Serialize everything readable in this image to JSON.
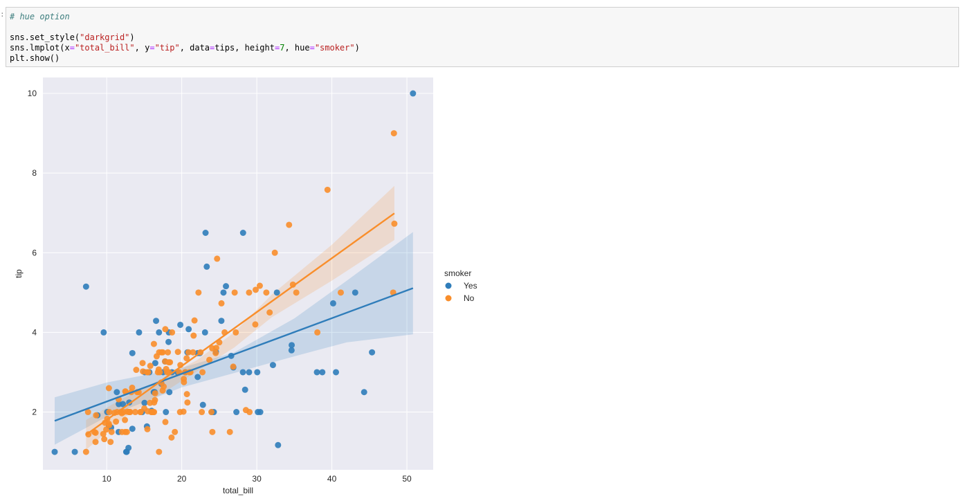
{
  "cell": {
    "prompt": ":",
    "comment": "# hue option",
    "line2_a": "sns.set_style(",
    "line2_b": "\"darkgrid\"",
    "line2_c": ")",
    "line3_a": "sns.lmplot(x",
    "line3_eq1": "=",
    "line3_b": "\"total_bill\"",
    "line3_c": ", y",
    "line3_eq2": "=",
    "line3_d": "\"tip\"",
    "line3_e": ", data",
    "line3_eq3": "=",
    "line3_f": "tips, height",
    "line3_eq4": "=",
    "line3_g": "7",
    "line3_h": ", hue",
    "line3_eq5": "=",
    "line3_i": "\"smoker\"",
    "line3_j": ")",
    "line4": "plt.show()"
  },
  "colors": {
    "yes": "#2f7dba",
    "no": "#f98e2b",
    "bg": "#eaeaf2"
  },
  "chart_data": {
    "type": "scatter",
    "xlabel": "total_bill",
    "ylabel": "tip",
    "xlim": [
      1.5,
      53.5
    ],
    "ylim": [
      0.55,
      10.4
    ],
    "xticks": [
      10,
      20,
      30,
      40,
      50
    ],
    "yticks": [
      2,
      4,
      6,
      8,
      10
    ],
    "grid": true,
    "legend": {
      "title": "smoker",
      "placement": "center-right",
      "entries": [
        "Yes",
        "No"
      ]
    },
    "series": [
      {
        "name": "Yes",
        "color": "#2f7dba",
        "regression": {
          "x": [
            3.07,
            50.81
          ],
          "y": [
            1.78,
            5.11
          ]
        },
        "ci_upper": [
          [
            3.07,
            2.37
          ],
          [
            10,
            2.74
          ],
          [
            20,
            3.11
          ],
          [
            27,
            3.5
          ],
          [
            35,
            4.35
          ],
          [
            42,
            5.3
          ],
          [
            50.81,
            6.52
          ]
        ],
        "ci_lower": [
          [
            3.07,
            1.18
          ],
          [
            10,
            1.88
          ],
          [
            20,
            2.62
          ],
          [
            27,
            2.98
          ],
          [
            35,
            3.4
          ],
          [
            42,
            3.75
          ],
          [
            50.81,
            3.95
          ]
        ],
        "x": [
          3.07,
          5.75,
          7.25,
          8.77,
          9.6,
          10.07,
          10.3,
          10.59,
          11.35,
          11.61,
          11.59,
          12.16,
          12.6,
          12.66,
          12.9,
          13.0,
          13.42,
          13.42,
          14.31,
          14.73,
          15.04,
          15.06,
          15.36,
          15.69,
          15.98,
          16.27,
          16.4,
          16.47,
          16.58,
          16.97,
          17.29,
          17.51,
          17.78,
          17.89,
          18.28,
          18.24,
          18.35,
          18.69,
          19.44,
          19.81,
          20.49,
          20.76,
          20.92,
          22.12,
          22.12,
          22.42,
          22.82,
          23.1,
          23.17,
          23.33,
          24.01,
          24.27,
          24.55,
          25.28,
          25.56,
          25.89,
          26.59,
          26.88,
          27.28,
          28.15,
          28.17,
          28.44,
          28.97,
          30.06,
          30.14,
          30.46,
          32.15,
          32.68,
          32.83,
          34.63,
          34.65,
          38.01,
          38.73,
          40.17,
          40.55,
          43.11,
          44.3,
          45.35,
          50.81
        ],
        "y": [
          1.0,
          1.0,
          5.15,
          1.92,
          4.0,
          2.0,
          1.66,
          1.61,
          2.5,
          2.2,
          1.5,
          2.2,
          1.0,
          1.0,
          1.1,
          2.24,
          3.48,
          1.58,
          4.0,
          2.0,
          2.23,
          3.0,
          1.64,
          3.0,
          2.03,
          2.5,
          2.5,
          3.23,
          4.29,
          4.0,
          2.71,
          3.0,
          3.27,
          2.0,
          4.0,
          3.76,
          2.5,
          3.0,
          3.0,
          4.19,
          3.0,
          3.5,
          4.08,
          2.88,
          3.48,
          3.48,
          2.18,
          4.0,
          6.5,
          5.65,
          2.0,
          2.0,
          3.51,
          4.29,
          5.0,
          5.16,
          3.41,
          3.12,
          2.0,
          3.0,
          6.5,
          2.56,
          3.0,
          3.0,
          2.0,
          2.0,
          3.18,
          5.0,
          1.17,
          3.55,
          3.68,
          3.0,
          3.0,
          4.73,
          3.0,
          5.0,
          2.5,
          3.5,
          10.0
        ]
      },
      {
        "name": "No",
        "color": "#f98e2b",
        "regression": {
          "x": [
            7.25,
            48.33
          ],
          "y": [
            1.43,
            6.99
          ]
        },
        "ci_upper": [
          [
            7.25,
            1.8
          ],
          [
            12,
            2.33
          ],
          [
            17,
            2.8
          ],
          [
            22,
            3.3
          ],
          [
            27,
            4.0
          ],
          [
            32,
            4.95
          ],
          [
            40,
            6.2
          ],
          [
            48.33,
            7.68
          ]
        ],
        "ci_lower": [
          [
            7.25,
            1.05
          ],
          [
            12,
            1.82
          ],
          [
            17,
            2.42
          ],
          [
            22,
            3.02
          ],
          [
            27,
            3.62
          ],
          [
            32,
            4.38
          ],
          [
            40,
            5.3
          ],
          [
            48.33,
            6.32
          ]
        ],
        "x": [
          7.25,
          7.56,
          7.51,
          8.35,
          8.51,
          8.52,
          8.58,
          9.55,
          9.68,
          9.78,
          9.94,
          10.07,
          10.27,
          10.29,
          10.33,
          10.34,
          10.51,
          10.65,
          11.02,
          11.24,
          11.38,
          11.59,
          11.87,
          12.02,
          12.03,
          12.26,
          12.43,
          12.46,
          12.48,
          12.54,
          12.69,
          12.74,
          13.0,
          13.03,
          13.13,
          13.27,
          13.39,
          13.81,
          13.94,
          14.07,
          14.26,
          14.48,
          14.52,
          14.78,
          14.83,
          15.01,
          15.38,
          15.42,
          15.48,
          15.53,
          15.77,
          15.81,
          15.95,
          16.0,
          16.21,
          16.29,
          16.31,
          16.32,
          16.43,
          16.45,
          16.66,
          16.82,
          16.93,
          16.97,
          16.99,
          17.07,
          17.26,
          17.31,
          17.46,
          17.47,
          17.59,
          17.78,
          17.81,
          17.82,
          17.92,
          18.04,
          18.15,
          18.26,
          18.29,
          18.43,
          18.64,
          18.71,
          19.08,
          19.49,
          19.65,
          19.77,
          19.82,
          20.23,
          20.27,
          20.29,
          20.45,
          20.65,
          20.69,
          20.76,
          20.9,
          21.01,
          21.16,
          21.5,
          21.58,
          21.7,
          22.23,
          22.49,
          22.67,
          22.76,
          23.68,
          23.95,
          24.06,
          24.08,
          24.52,
          24.59,
          24.71,
          25.0,
          25.29,
          25.71,
          26.41,
          26.86,
          27.05,
          27.2,
          28.55,
          28.97,
          29.03,
          29.8,
          29.85,
          30.4,
          31.27,
          31.71,
          32.4,
          34.3,
          34.81,
          35.26,
          38.07,
          39.42,
          41.19,
          48.17,
          48.27,
          48.33
        ],
        "y": [
          1.0,
          1.44,
          2.0,
          1.5,
          1.25,
          1.48,
          1.92,
          1.45,
          1.32,
          1.73,
          1.56,
          1.83,
          1.71,
          2.6,
          1.67,
          2.0,
          1.25,
          1.5,
          1.98,
          1.76,
          2.0,
          2.32,
          2.0,
          1.97,
          1.5,
          2.0,
          1.8,
          1.5,
          2.52,
          2.5,
          1.5,
          2.01,
          2.0,
          2.0,
          2.0,
          2.5,
          2.61,
          2.0,
          3.06,
          2.5,
          2.5,
          2.0,
          2.0,
          3.23,
          3.02,
          2.09,
          3.0,
          1.57,
          2.02,
          3.0,
          2.23,
          3.16,
          2.0,
          2.0,
          2.0,
          3.71,
          2.0,
          2.24,
          2.3,
          2.47,
          3.4,
          3.0,
          3.07,
          1.0,
          3.5,
          3.0,
          2.74,
          3.5,
          2.54,
          3.5,
          2.64,
          3.27,
          4.08,
          1.75,
          3.08,
          3.0,
          3.5,
          3.25,
          3.0,
          3.25,
          1.36,
          4.0,
          1.5,
          3.51,
          3.0,
          2.0,
          3.18,
          2.01,
          2.83,
          2.75,
          3.0,
          3.35,
          2.45,
          2.24,
          3.5,
          3.0,
          3.0,
          3.5,
          3.92,
          4.3,
          5.0,
          3.5,
          2.0,
          3.0,
          3.31,
          2.0,
          3.6,
          1.5,
          3.48,
          3.61,
          5.85,
          3.75,
          4.73,
          4.0,
          1.5,
          3.14,
          5.0,
          4.0,
          2.05,
          5.0,
          2.0,
          4.2,
          5.07,
          5.17,
          5.0,
          4.5,
          6.0,
          6.7,
          5.2,
          5.0,
          4.0,
          7.58,
          5.0,
          5.0,
          9.0,
          6.73
        ]
      }
    ]
  }
}
